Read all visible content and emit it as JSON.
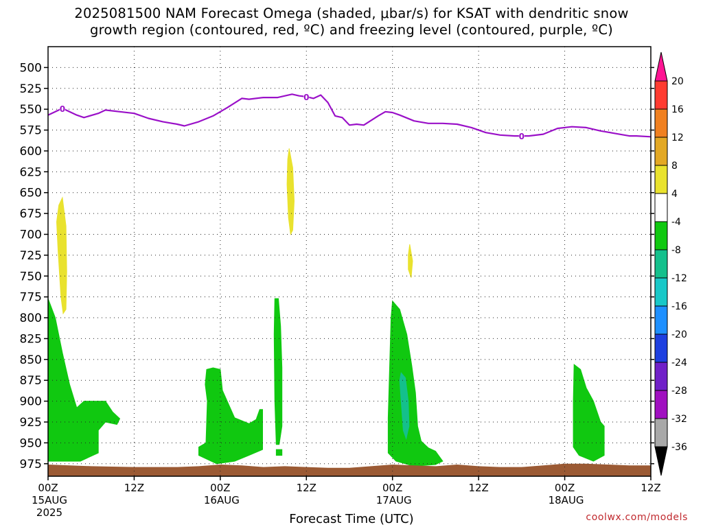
{
  "title_line1": "2025081500 NAM Forecast Omega (shaded, μbar/s) for KSAT with dendritic snow",
  "title_line2": "growth region (contoured, red, ºC) and freezing level (contoured, purple, ºC)",
  "credit": "coolwx.com/models",
  "chart_data": {
    "type": "time-height contour",
    "xlabel": "Forecast Time (UTC)",
    "ylabel": "",
    "x_range_hours": [
      0,
      84
    ],
    "y_range_mb": [
      475,
      990
    ],
    "y_ticks": [
      500,
      525,
      550,
      575,
      600,
      625,
      650,
      675,
      700,
      725,
      750,
      775,
      800,
      825,
      850,
      875,
      900,
      925,
      950,
      975
    ],
    "x_ticks": [
      {
        "hour": 0,
        "labels": [
          "00Z",
          "15AUG",
          "2025"
        ]
      },
      {
        "hour": 12,
        "labels": [
          "12Z"
        ]
      },
      {
        "hour": 24,
        "labels": [
          "00Z",
          "16AUG"
        ]
      },
      {
        "hour": 36,
        "labels": [
          "12Z"
        ]
      },
      {
        "hour": 48,
        "labels": [
          "00Z",
          "17AUG"
        ]
      },
      {
        "hour": 60,
        "labels": [
          "12Z"
        ]
      },
      {
        "hour": 72,
        "labels": [
          "00Z",
          "18AUG"
        ]
      },
      {
        "hour": 84,
        "labels": [
          "12Z"
        ]
      }
    ],
    "grid": true,
    "colorbar": {
      "levels": [
        20,
        16,
        12,
        8,
        4,
        -4,
        -8,
        -12,
        -16,
        -20,
        -24,
        -28,
        -32,
        -36
      ],
      "colors": [
        "#ff1493",
        "#ff3b30",
        "#f08020",
        "#e3a824",
        "#e9e22e",
        "#ffffff",
        "#10c810",
        "#14c08c",
        "#18c8c8",
        "#1e90ff",
        "#1e40e0",
        "#7020c8",
        "#a010c0",
        "#a8a8a8",
        "#000000"
      ]
    },
    "freezing_level": {
      "color": "#9a10c8",
      "contour_label": "0",
      "label_hours": [
        2,
        36,
        66
      ],
      "hours": [
        0,
        2,
        4,
        5,
        7,
        8,
        10,
        12,
        14,
        16,
        18,
        19,
        21,
        23,
        25,
        27,
        28,
        30,
        31,
        32,
        34,
        35,
        36,
        37,
        38,
        39,
        40,
        41,
        42,
        43,
        44,
        46,
        47,
        48,
        49,
        51,
        53,
        55,
        57,
        59,
        61,
        63,
        65,
        67,
        69,
        71,
        73,
        75,
        77,
        79,
        81,
        82,
        84
      ],
      "mb": [
        557,
        549,
        557,
        560,
        555,
        551,
        553,
        555,
        561,
        565,
        568,
        570,
        565,
        558,
        548,
        537,
        538,
        536,
        536,
        536,
        532,
        534,
        535,
        537,
        533,
        542,
        558,
        560,
        569,
        568,
        569,
        558,
        553,
        554,
        557,
        564,
        567,
        567,
        568,
        572,
        578,
        581,
        582,
        582,
        580,
        573,
        571,
        572,
        576,
        579,
        582,
        582,
        583
      ]
    },
    "omega_regions": [
      {
        "value_class": "-4 to -8",
        "color": "#10c810",
        "polygon": [
          [
            0,
            777
          ],
          [
            1,
            800
          ],
          [
            2,
            842
          ],
          [
            3,
            880
          ],
          [
            4,
            908
          ],
          [
            5,
            900
          ],
          [
            8,
            900
          ],
          [
            9,
            913
          ],
          [
            10,
            921
          ],
          [
            9.6,
            928
          ],
          [
            8,
            925
          ],
          [
            7,
            935
          ],
          [
            7,
            962
          ],
          [
            4.5,
            972
          ],
          [
            0,
            972
          ]
        ]
      },
      {
        "value_class": "-4 to -8",
        "color": "#10c810",
        "polygon": [
          [
            22.1,
            862
          ],
          [
            23,
            860
          ],
          [
            24,
            862
          ],
          [
            24.3,
            887
          ],
          [
            26,
            920
          ],
          [
            28,
            927
          ],
          [
            29,
            922
          ],
          [
            29.5,
            910
          ],
          [
            29.9,
            910
          ],
          [
            29.9,
            958
          ],
          [
            28,
            965
          ],
          [
            26,
            972
          ],
          [
            23.5,
            975
          ],
          [
            21,
            965
          ],
          [
            21,
            955
          ],
          [
            22,
            950
          ],
          [
            22.2,
            900
          ],
          [
            21.9,
            880
          ]
        ]
      },
      {
        "value_class": "-4 to -8",
        "color": "#10c810",
        "polygon": [
          [
            31.6,
            777
          ],
          [
            32.1,
            777
          ],
          [
            32.4,
            810
          ],
          [
            32.6,
            860
          ],
          [
            32.6,
            930
          ],
          [
            32.2,
            952
          ],
          [
            31.8,
            952
          ],
          [
            31.6,
            900
          ],
          [
            31.5,
            820
          ]
        ]
      },
      {
        "value_class": "-4 to -8",
        "color": "#10c810",
        "polygon": [
          [
            31.8,
            958
          ],
          [
            32.6,
            958
          ],
          [
            32.6,
            965
          ],
          [
            31.8,
            965
          ]
        ]
      },
      {
        "value_class": "-4 to -8",
        "color": "#10c810",
        "polygon": [
          [
            48,
            780
          ],
          [
            49,
            790
          ],
          [
            50,
            820
          ],
          [
            50.7,
            858
          ],
          [
            51.2,
            890
          ],
          [
            51.5,
            930
          ],
          [
            52,
            948
          ],
          [
            53,
            956
          ],
          [
            54,
            960
          ],
          [
            55,
            972
          ],
          [
            54,
            976
          ],
          [
            51,
            978
          ],
          [
            48.5,
            972
          ],
          [
            47.4,
            962
          ],
          [
            47.4,
            920
          ],
          [
            47.6,
            860
          ],
          [
            47.8,
            800
          ]
        ]
      },
      {
        "value_class": "-8 to -12",
        "color": "#14c08c",
        "polygon": [
          [
            49.2,
            866
          ],
          [
            49.8,
            872
          ],
          [
            50.2,
            900
          ],
          [
            50.3,
            930
          ],
          [
            49.9,
            945
          ],
          [
            49.5,
            935
          ],
          [
            49.2,
            900
          ],
          [
            49.0,
            875
          ]
        ]
      },
      {
        "value_class": "-4 to -8",
        "color": "#10c810",
        "polygon": [
          [
            73.3,
            856
          ],
          [
            74.2,
            862
          ],
          [
            75,
            884
          ],
          [
            76,
            900
          ],
          [
            77,
            925
          ],
          [
            77.5,
            930
          ],
          [
            77.5,
            965
          ],
          [
            76,
            972
          ],
          [
            74,
            965
          ],
          [
            73.2,
            955
          ],
          [
            73.2,
            900
          ]
        ]
      },
      {
        "value_class": "4 to 8",
        "color": "#e9e22e",
        "polygon": [
          [
            2.0,
            656
          ],
          [
            2.5,
            690
          ],
          [
            2.6,
            745
          ],
          [
            2.5,
            790
          ],
          [
            2.1,
            795
          ],
          [
            1.8,
            775
          ],
          [
            1.4,
            720
          ],
          [
            1.2,
            685
          ],
          [
            1.5,
            665
          ]
        ]
      },
      {
        "value_class": "4 to 8",
        "color": "#e9e22e",
        "polygon": [
          [
            33.6,
            597
          ],
          [
            34.1,
            620
          ],
          [
            34.3,
            660
          ],
          [
            34.1,
            695
          ],
          [
            33.8,
            700
          ],
          [
            33.5,
            680
          ],
          [
            33.3,
            640
          ],
          [
            33.4,
            610
          ]
        ]
      },
      {
        "value_class": "4 to 8",
        "color": "#e9e22e",
        "polygon": [
          [
            50.4,
            712
          ],
          [
            50.8,
            732
          ],
          [
            50.6,
            752
          ],
          [
            50.2,
            742
          ],
          [
            50.2,
            725
          ]
        ]
      }
    ],
    "surface": {
      "color": "#9b5a34",
      "hours": [
        0,
        6,
        12,
        18,
        21,
        24,
        27,
        30,
        33,
        36,
        39,
        42,
        45,
        48,
        51,
        54,
        57,
        60,
        63,
        66,
        69,
        72,
        75,
        78,
        81,
        84
      ],
      "mb": [
        976,
        978,
        979,
        979,
        978,
        976,
        977,
        979,
        978,
        979,
        980,
        980,
        978,
        976,
        977,
        978,
        976,
        978,
        979,
        979,
        977,
        975,
        975,
        976,
        977,
        977
      ]
    }
  }
}
